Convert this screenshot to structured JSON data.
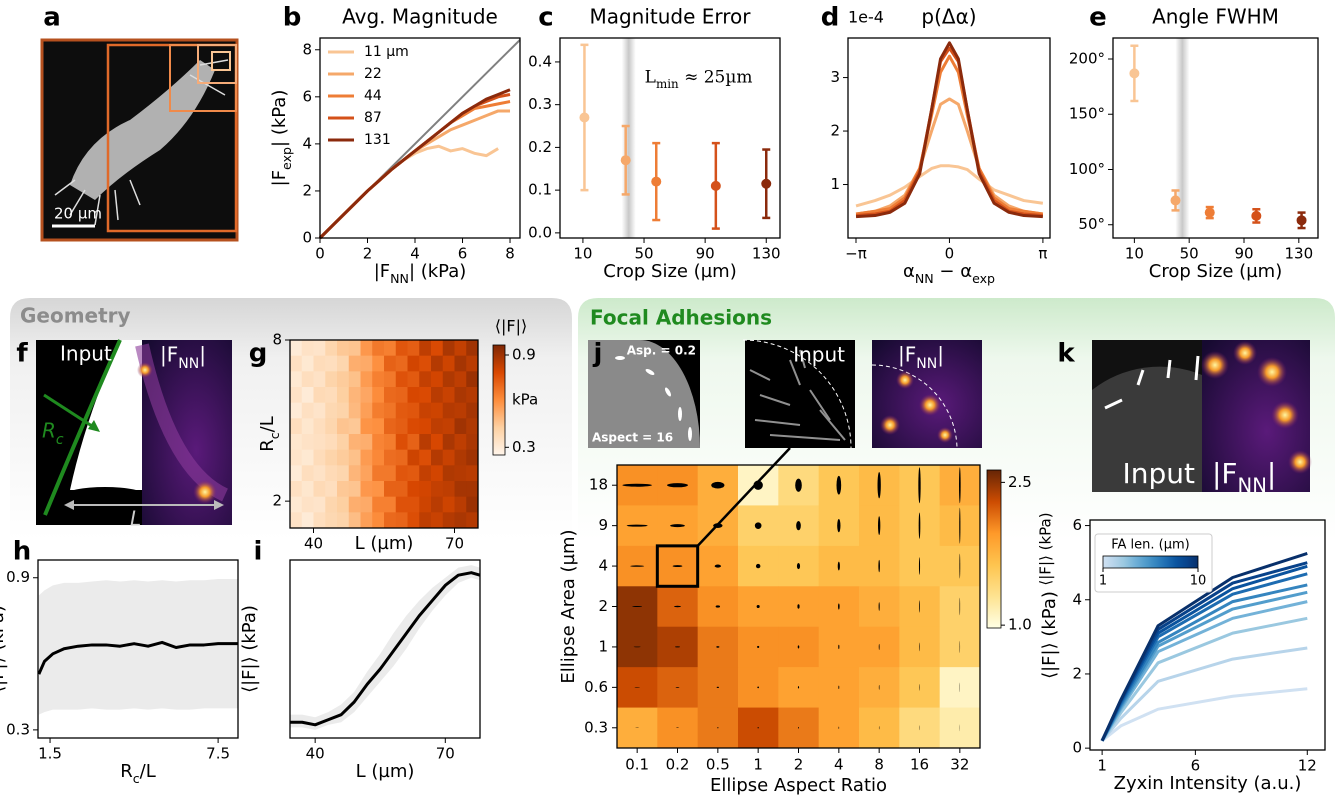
{
  "panels": [
    "a",
    "b",
    "c",
    "d",
    "e",
    "f",
    "g",
    "h",
    "i",
    "j",
    "k"
  ],
  "sections": [
    "Geometry",
    "Focal Adhesions"
  ],
  "images": {
    "scale_bar": "20 µm",
    "f_input": "Input",
    "f_output": "|F_{NN}|",
    "f_rc": "R_{c}",
    "f_l": "L",
    "j_asp_low": "Asp. = 0.2",
    "j_asp_high": "Aspect = 16",
    "j_input": "Input",
    "j_output": "|F_{NN}|",
    "k_input": "Input",
    "k_output": "|F_{NN}|"
  },
  "chart_data": [
    {
      "type": "line",
      "title": "Avg. Magnitude",
      "xlabel": "|F_{NN}| (kPa)",
      "ylabel": "|F_{exp}| (kPa)",
      "legend": "upper left",
      "x": [
        0,
        0.5,
        1,
        1.5,
        2,
        2.5,
        3,
        3.5,
        4,
        4.5,
        5,
        5.5,
        6,
        6.5,
        7,
        7.5,
        8
      ],
      "xlim": [
        0,
        8.42
      ],
      "ylim": [
        0,
        8.5
      ],
      "xticks": [
        0,
        2,
        4,
        6,
        8
      ],
      "yticks": [
        0,
        2,
        4,
        6,
        8
      ],
      "diagonal": {
        "x": [
          0,
          8.42
        ],
        "values": [
          0,
          8.42
        ],
        "color": "#808080"
      },
      "series": [
        {
          "name": "11 µm",
          "color": "#f9c594",
          "values": [
            0,
            0.5,
            1.0,
            1.5,
            2.0,
            2.45,
            2.9,
            3.3,
            3.6,
            3.8,
            3.9,
            3.7,
            3.8,
            3.6,
            3.5,
            3.8,
            null
          ]
        },
        {
          "name": "22",
          "color": "#f5a86a",
          "values": [
            0,
            0.5,
            1.0,
            1.5,
            2.0,
            2.45,
            2.9,
            3.3,
            3.7,
            4.0,
            4.3,
            4.6,
            4.8,
            5.0,
            5.2,
            5.4,
            5.4
          ]
        },
        {
          "name": "44",
          "color": "#ee7d36",
          "values": [
            0,
            0.5,
            1,
            1.5,
            2,
            2.45,
            2.9,
            3.3,
            3.7,
            4.1,
            4.5,
            4.9,
            5.2,
            5.5,
            5.6,
            5.7,
            5.8
          ]
        },
        {
          "name": "87",
          "color": "#d4511a",
          "values": [
            0,
            0.5,
            1,
            1.5,
            2,
            2.45,
            2.9,
            3.3,
            3.7,
            4.1,
            4.5,
            4.9,
            5.3,
            5.6,
            5.8,
            6.0,
            6.1
          ]
        },
        {
          "name": "131",
          "color": "#8b2a0c",
          "values": [
            0,
            0.5,
            1,
            1.5,
            2,
            2.45,
            2.9,
            3.3,
            3.7,
            4.1,
            4.5,
            4.9,
            5.3,
            5.6,
            5.9,
            6.1,
            6.3
          ]
        }
      ]
    },
    {
      "type": "errorbar",
      "title": "Magnitude Error",
      "xlabel": "Crop Size (µm)",
      "annotation": "L_{min} ≈ 25µm",
      "x": [
        11,
        38,
        58,
        97,
        130
      ],
      "values": [
        0.27,
        0.17,
        0.12,
        0.11,
        0.115
      ],
      "errors": [
        0.17,
        0.08,
        0.09,
        0.1,
        0.08
      ],
      "colors": [
        "#f9c594",
        "#f5a86a",
        "#ee7d36",
        "#d4511a",
        "#8b2a0c"
      ],
      "highlight_x": 40,
      "xlim": [
        -5,
        139
      ],
      "ylim": [
        -0.012,
        0.456
      ],
      "xticks": [
        10,
        50,
        90,
        130
      ],
      "yticks": [
        {
          "value": 0,
          "label": "0.0"
        },
        0.1,
        0.2,
        0.3,
        0.4
      ]
    },
    {
      "type": "line",
      "title": "p(Δα)",
      "y_multiplier": "1e-4",
      "xlabel": "α_{NN} − α_{exp}",
      "x": [
        -3.14,
        -2.5,
        -2,
        -1.5,
        -1,
        -0.6,
        -0.3,
        0,
        0.3,
        0.6,
        1,
        1.5,
        2,
        2.5,
        3.14
      ],
      "xlim": [
        -3.41,
        3.38
      ],
      "ylim": [
        0,
        3.74
      ],
      "xticks": [
        {
          "value": -3.1416,
          "label": "−π"
        },
        0,
        {
          "value": 3.1416,
          "label": "π"
        }
      ],
      "yticks": [
        1,
        2,
        3
      ],
      "series": [
        {
          "color": "#f9c594",
          "values": [
            0.6,
            0.7,
            0.8,
            0.95,
            1.15,
            1.3,
            1.35,
            1.35,
            1.33,
            1.28,
            1.1,
            0.9,
            0.8,
            0.7,
            0.65
          ]
        },
        {
          "color": "#f5a86a",
          "values": [
            0.45,
            0.5,
            0.6,
            0.8,
            1.3,
            2.0,
            2.5,
            2.6,
            2.5,
            2.0,
            1.3,
            0.8,
            0.6,
            0.5,
            0.45
          ]
        },
        {
          "color": "#ee7d36",
          "values": [
            0.45,
            0.5,
            0.55,
            0.75,
            1.3,
            2.3,
            3.1,
            3.4,
            3.1,
            2.3,
            1.3,
            0.75,
            0.55,
            0.5,
            0.45
          ]
        },
        {
          "color": "#d4511a",
          "values": [
            0.42,
            0.45,
            0.5,
            0.7,
            1.25,
            2.4,
            3.3,
            3.55,
            3.3,
            2.4,
            1.25,
            0.7,
            0.5,
            0.45,
            0.42
          ]
        },
        {
          "color": "#8b2a0c",
          "values": [
            0.4,
            0.42,
            0.48,
            0.65,
            1.2,
            2.4,
            3.35,
            3.65,
            3.35,
            2.4,
            1.2,
            0.65,
            0.48,
            0.42,
            0.4
          ]
        }
      ]
    },
    {
      "type": "errorbar",
      "title": "Angle FWHM",
      "xlabel": "Crop Size (µm)",
      "x": [
        10,
        40,
        65,
        99,
        132
      ],
      "values": [
        187,
        72,
        61,
        58,
        54
      ],
      "errors": [
        25,
        9,
        5,
        6,
        7
      ],
      "colors": [
        "#f9c594",
        "#f5a86a",
        "#ee7d36",
        "#d4511a",
        "#8b2a0c"
      ],
      "highlight_x": 45,
      "xlim": [
        -5.6,
        144
      ],
      "ylim": [
        38,
        219
      ],
      "xticks": [
        10,
        50,
        90,
        130
      ],
      "yticks": [
        {
          "value": 50,
          "label": "50°"
        },
        {
          "value": 100,
          "label": "100°"
        },
        {
          "value": 150,
          "label": "150°"
        },
        {
          "value": 200,
          "label": "200°"
        }
      ]
    },
    {
      "type": "heatmap",
      "xlabel": "L (µm)",
      "ylabel": "R_{c}/L",
      "xlim": [
        35,
        75
      ],
      "ylim": [
        1,
        8
      ],
      "xticks": [
        40,
        70
      ],
      "yticks": [
        2,
        8
      ],
      "cbar_label": [
        "⟨|F|⟩",
        "kPa"
      ],
      "cbar_lim": [
        0.25,
        0.965
      ],
      "cbar_ticks": [
        0.3,
        0.9
      ],
      "z": [
        [
          0.3,
          0.34,
          0.33,
          0.4,
          0.45,
          0.46,
          0.58,
          0.66,
          0.64,
          0.75,
          0.73,
          0.84,
          0.78,
          0.88,
          0.83,
          0.9
        ],
        [
          0.35,
          0.31,
          0.37,
          0.36,
          0.4,
          0.52,
          0.53,
          0.6,
          0.72,
          0.7,
          0.8,
          0.77,
          0.86,
          0.81,
          0.89,
          0.85
        ],
        [
          0.31,
          0.36,
          0.34,
          0.41,
          0.44,
          0.47,
          0.57,
          0.64,
          0.66,
          0.76,
          0.74,
          0.83,
          0.8,
          0.87,
          0.84,
          0.91
        ],
        [
          0.34,
          0.3,
          0.38,
          0.37,
          0.43,
          0.5,
          0.54,
          0.61,
          0.7,
          0.71,
          0.79,
          0.78,
          0.85,
          0.82,
          0.88,
          0.86
        ],
        [
          0.3,
          0.35,
          0.33,
          0.39,
          0.41,
          0.49,
          0.56,
          0.65,
          0.67,
          0.74,
          0.75,
          0.82,
          0.81,
          0.86,
          0.85,
          0.89
        ],
        [
          0.36,
          0.32,
          0.36,
          0.4,
          0.46,
          0.45,
          0.59,
          0.6,
          0.71,
          0.73,
          0.78,
          0.79,
          0.84,
          0.83,
          0.9,
          0.87
        ],
        [
          0.32,
          0.34,
          0.35,
          0.37,
          0.42,
          0.51,
          0.52,
          0.63,
          0.65,
          0.77,
          0.72,
          0.85,
          0.79,
          0.88,
          0.84,
          0.88
        ],
        [
          0.33,
          0.31,
          0.37,
          0.41,
          0.44,
          0.47,
          0.57,
          0.62,
          0.69,
          0.7,
          0.81,
          0.77,
          0.86,
          0.82,
          0.87,
          0.9
        ],
        [
          0.3,
          0.36,
          0.34,
          0.38,
          0.4,
          0.5,
          0.55,
          0.66,
          0.66,
          0.75,
          0.74,
          0.83,
          0.8,
          0.87,
          0.86,
          0.85
        ],
        [
          0.35,
          0.32,
          0.38,
          0.36,
          0.45,
          0.46,
          0.58,
          0.59,
          0.72,
          0.72,
          0.79,
          0.8,
          0.83,
          0.84,
          0.89,
          0.89
        ],
        [
          0.31,
          0.34,
          0.33,
          0.4,
          0.43,
          0.52,
          0.53,
          0.64,
          0.64,
          0.76,
          0.76,
          0.81,
          0.85,
          0.81,
          0.85,
          0.91
        ],
        [
          0.34,
          0.3,
          0.36,
          0.39,
          0.41,
          0.48,
          0.56,
          0.61,
          0.7,
          0.71,
          0.77,
          0.84,
          0.82,
          0.86,
          0.88,
          0.86
        ]
      ]
    },
    {
      "type": "line",
      "xlabel": "R_{c}/L",
      "ylabel": "⟨|F|⟩ (kPa)",
      "x": [
        1.1,
        1.3,
        1.6,
        2,
        2.5,
        3,
        3.5,
        4,
        4.5,
        5,
        5.5,
        6,
        6.5,
        7,
        7.5,
        8.2
      ],
      "xlim": [
        1.07,
        8.21
      ],
      "ylim": [
        0.268,
        0.97
      ],
      "xticks": [
        1.5,
        7.5
      ],
      "yticks": [
        0.3,
        0.9
      ],
      "series": [
        {
          "color": "#000000",
          "band_color": "#ebebeb",
          "values": [
            0.52,
            0.57,
            0.6,
            0.62,
            0.63,
            0.635,
            0.635,
            0.63,
            0.64,
            0.63,
            0.645,
            0.625,
            0.635,
            0.635,
            0.64,
            0.64
          ],
          "upper": [
            0.83,
            0.85,
            0.87,
            0.88,
            0.88,
            0.885,
            0.89,
            0.885,
            0.89,
            0.885,
            0.89,
            0.885,
            0.89,
            0.89,
            0.895,
            0.895
          ],
          "lower": [
            0.36,
            0.37,
            0.38,
            0.38,
            0.38,
            0.385,
            0.38,
            0.38,
            0.385,
            0.38,
            0.385,
            0.38,
            0.38,
            0.385,
            0.385,
            0.385
          ]
        }
      ]
    },
    {
      "type": "line",
      "xlabel": "L (µm)",
      "ylabel": "⟨|F|⟩ (kPa)",
      "x": [
        34.2,
        37,
        40,
        43,
        46,
        49,
        52,
        55,
        58,
        61,
        64,
        67,
        70,
        73,
        76,
        78
      ],
      "xlim": [
        34.2,
        78
      ],
      "ylim": [
        0.268,
        0.97
      ],
      "xticks": [
        40,
        70
      ],
      "series": [
        {
          "color": "#000000",
          "band_color": "#ebebeb",
          "values": [
            0.33,
            0.33,
            0.32,
            0.34,
            0.36,
            0.41,
            0.48,
            0.54,
            0.61,
            0.68,
            0.75,
            0.81,
            0.87,
            0.91,
            0.92,
            0.91
          ],
          "upper": [
            0.36,
            0.36,
            0.35,
            0.37,
            0.4,
            0.45,
            0.53,
            0.6,
            0.68,
            0.75,
            0.81,
            0.86,
            0.9,
            0.94,
            0.95,
            0.94
          ],
          "lower": [
            0.31,
            0.31,
            0.3,
            0.32,
            0.33,
            0.37,
            0.43,
            0.49,
            0.55,
            0.62,
            0.7,
            0.77,
            0.83,
            0.88,
            0.9,
            0.89
          ]
        }
      ]
    },
    {
      "type": "heatmap",
      "xlabel": "Ellipse Aspect Ratio",
      "ylabel": "Ellipse Area (µm)",
      "x_categories": [
        0.1,
        0.2,
        0.5,
        1,
        2,
        4,
        8,
        16,
        32
      ],
      "y_categories": [
        18,
        9,
        4,
        2,
        1,
        0.6,
        0.3
      ],
      "cbar_label": "⟨|F|⟩ (kPa)",
      "cbar_lim": [
        0.97,
        2.63
      ],
      "cbar_ticks": [
        {
          "value": 1,
          "label": "1.0"
        },
        2.5
      ],
      "z": [
        [
          2.0,
          2.0,
          1.8,
          1.1,
          1.4,
          1.6,
          1.7,
          1.6,
          1.8
        ],
        [
          1.9,
          1.9,
          1.8,
          1.5,
          1.5,
          1.6,
          1.7,
          1.6,
          1.7
        ],
        [
          2.0,
          2.0,
          1.9,
          1.6,
          1.6,
          1.7,
          1.7,
          1.6,
          1.6
        ],
        [
          2.5,
          2.2,
          2.0,
          1.9,
          1.9,
          1.9,
          1.8,
          1.7,
          1.5
        ],
        [
          2.5,
          2.4,
          2.1,
          2.0,
          2.0,
          1.9,
          1.9,
          1.7,
          1.5
        ],
        [
          2.3,
          2.2,
          2.1,
          2.0,
          1.9,
          1.9,
          1.8,
          1.6,
          1.1
        ],
        [
          1.8,
          2.0,
          2.1,
          2.3,
          2.1,
          1.9,
          1.7,
          1.4,
          1.2
        ]
      ]
    },
    {
      "type": "line",
      "xlabel": "Zyxin Intensity (a.u.)",
      "ylabel": "⟨|F|⟩ (kPa)",
      "x": [
        1,
        2,
        4,
        8,
        12
      ],
      "xlim": [
        0.35,
        12.95
      ],
      "ylim": [
        -0.05,
        6.15
      ],
      "xticks": [
        1,
        6,
        12
      ],
      "yticks": [
        0,
        2,
        4,
        6
      ],
      "colorbar": {
        "label": "FA len. (µm)",
        "lim": [
          1,
          10
        ],
        "ticks": [
          1,
          10
        ]
      },
      "series": [
        {
          "color": "#d0e1f2",
          "values": [
            0.2,
            0.6,
            1.05,
            1.4,
            1.6
          ]
        },
        {
          "color": "#b7d4ea",
          "values": [
            0.2,
            0.8,
            1.8,
            2.4,
            2.7
          ]
        },
        {
          "color": "#9ac8e0",
          "values": [
            0.2,
            0.95,
            2.3,
            3.1,
            3.5
          ]
        },
        {
          "color": "#73b2d8",
          "values": [
            0.2,
            1.05,
            2.6,
            3.5,
            3.95
          ]
        },
        {
          "color": "#529dcc",
          "values": [
            0.2,
            1.1,
            2.75,
            3.75,
            4.2
          ]
        },
        {
          "color": "#3585bf",
          "values": [
            0.2,
            1.15,
            2.85,
            3.95,
            4.4
          ]
        },
        {
          "color": "#1d6cb1",
          "values": [
            0.2,
            1.2,
            3.0,
            4.15,
            4.7
          ]
        },
        {
          "color": "#0a539e",
          "values": [
            0.2,
            1.25,
            3.1,
            4.3,
            4.9
          ]
        },
        {
          "color": "#08428a",
          "values": [
            0.2,
            1.28,
            3.2,
            4.45,
            5.0
          ]
        },
        {
          "color": "#08306b",
          "values": [
            0.2,
            1.3,
            3.3,
            4.6,
            5.25
          ]
        }
      ]
    }
  ]
}
